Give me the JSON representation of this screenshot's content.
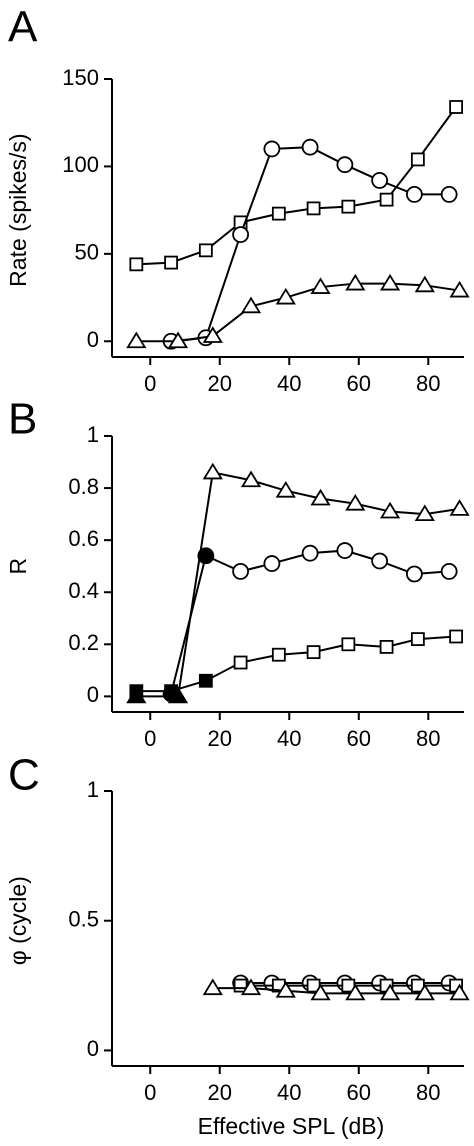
{
  "chart_data": [
    {
      "type": "line",
      "panel_label": "A",
      "ylabel": "Rate (spikes/s)",
      "xlim": [
        -11,
        92
      ],
      "xticks": [
        0,
        20,
        40,
        60,
        80
      ],
      "ylim": [
        -9,
        150
      ],
      "yticks": [
        0,
        50,
        100,
        150
      ],
      "series": [
        {
          "marker": "square",
          "color": "#000000",
          "x": [
            -4,
            6,
            16,
            26,
            37,
            47,
            57,
            68,
            77,
            88
          ],
          "values": [
            44,
            45,
            52,
            68,
            73,
            76,
            77,
            81,
            104,
            134
          ]
        },
        {
          "marker": "circle",
          "color": "#000000",
          "x": [
            6,
            16,
            26,
            35,
            46,
            56,
            66,
            76,
            86
          ],
          "values": [
            0,
            2,
            61,
            110,
            111,
            101,
            92,
            84,
            84
          ]
        },
        {
          "marker": "triangle",
          "color": "#000000",
          "x": [
            -4,
            8,
            18,
            29,
            39,
            49,
            59,
            69,
            79,
            89
          ],
          "values": [
            0,
            0,
            3,
            20,
            25,
            31,
            33,
            33,
            32,
            29
          ]
        }
      ]
    },
    {
      "type": "line",
      "panel_label": "B",
      "ylabel": "R",
      "xlim": [
        -11,
        92
      ],
      "xticks": [
        0,
        20,
        40,
        60,
        80
      ],
      "ylim": [
        -0.06,
        1
      ],
      "yticks": [
        0,
        0.2,
        0.4,
        0.6,
        0.8,
        1
      ],
      "series": [
        {
          "marker": "square",
          "color": "#000000",
          "x": [
            -4,
            6,
            16,
            26,
            37,
            47,
            57,
            68,
            77,
            88
          ],
          "values": [
            0.02,
            0.02,
            0.06,
            0.13,
            0.16,
            0.17,
            0.2,
            0.19,
            0.22,
            0.23
          ],
          "filled": [
            true,
            true,
            true,
            false,
            false,
            false,
            false,
            false,
            false,
            false
          ]
        },
        {
          "marker": "circle",
          "color": "#000000",
          "x": [
            6,
            16,
            26,
            35,
            46,
            56,
            66,
            76,
            86
          ],
          "values": [
            0.01,
            0.54,
            0.48,
            0.51,
            0.55,
            0.56,
            0.52,
            0.47,
            0.48
          ],
          "filled": [
            true,
            true,
            false,
            false,
            false,
            false,
            false,
            false,
            false
          ]
        },
        {
          "marker": "triangle",
          "color": "#000000",
          "x": [
            -4,
            8,
            18,
            29,
            39,
            49,
            59,
            69,
            79,
            89
          ],
          "values": [
            0,
            0,
            0.86,
            0.83,
            0.79,
            0.76,
            0.74,
            0.71,
            0.7,
            0.72
          ],
          "filled": [
            true,
            true,
            false,
            false,
            false,
            false,
            false,
            false,
            false,
            false
          ]
        }
      ]
    },
    {
      "type": "line",
      "panel_label": "C",
      "ylabel": "φ (cycle)",
      "xlabel": "Effective SPL (dB)",
      "xlim": [
        -11,
        92
      ],
      "xticks": [
        0,
        20,
        40,
        60,
        80
      ],
      "ylim": [
        -0.06,
        1
      ],
      "yticks": [
        0,
        0.5,
        1
      ],
      "series": [
        {
          "marker": "circle",
          "color": "#000000",
          "x": [
            26,
            35,
            46,
            56,
            66,
            76,
            86
          ],
          "values": [
            0.26,
            0.26,
            0.26,
            0.26,
            0.26,
            0.26,
            0.26
          ]
        },
        {
          "marker": "square",
          "color": "#000000",
          "x": [
            26,
            37,
            47,
            57,
            68,
            77,
            88
          ],
          "values": [
            0.25,
            0.25,
            0.25,
            0.25,
            0.25,
            0.25,
            0.25
          ]
        },
        {
          "marker": "triangle",
          "color": "#000000",
          "x": [
            18,
            29,
            39,
            49,
            59,
            69,
            79,
            89
          ],
          "values": [
            0.24,
            0.24,
            0.23,
            0.22,
            0.22,
            0.22,
            0.22,
            0.22
          ]
        }
      ]
    }
  ]
}
